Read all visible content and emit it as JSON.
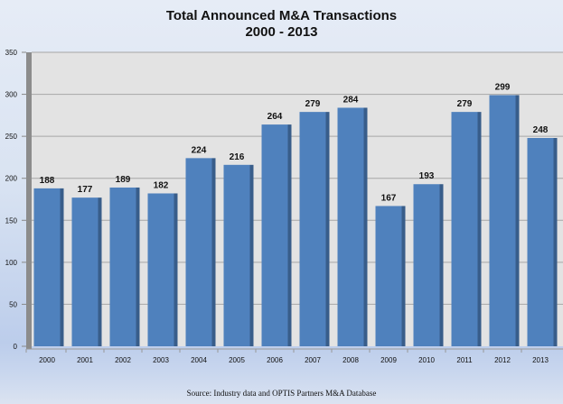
{
  "chart_data": {
    "type": "bar",
    "title": "Total Announced M&A Transactions",
    "subtitle": "2000 - 2013",
    "xlabel": "",
    "ylabel": "",
    "categories": [
      "2000",
      "2001",
      "2002",
      "2003",
      "2004",
      "2005",
      "2006",
      "2007",
      "2008",
      "2009",
      "2010",
      "2011",
      "2012",
      "2013"
    ],
    "values": [
      188,
      177,
      189,
      182,
      224,
      216,
      264,
      279,
      284,
      167,
      193,
      279,
      299,
      248
    ],
    "data_labels": [
      "188",
      "177",
      "189",
      "182",
      "224",
      "216",
      "264",
      "279",
      "284",
      "167",
      "193",
      "279",
      "299",
      "248"
    ],
    "ylim": [
      0,
      350
    ],
    "yticks": [
      0,
      50,
      100,
      150,
      200,
      250,
      300,
      350
    ],
    "ytick_labels": [
      "0",
      "50",
      "100",
      "150",
      "200",
      "250",
      "300",
      "350"
    ],
    "grid": true,
    "legend": "none",
    "colors": {
      "bar": "#4f81bd",
      "bar_side": "#385d8a",
      "plot_bg": "#e3e3e3",
      "grid": "#a6a6a6",
      "wall": "#8c8c8c"
    }
  },
  "source": "Source:  Industry data and OPTIS Partners  M&A Database"
}
